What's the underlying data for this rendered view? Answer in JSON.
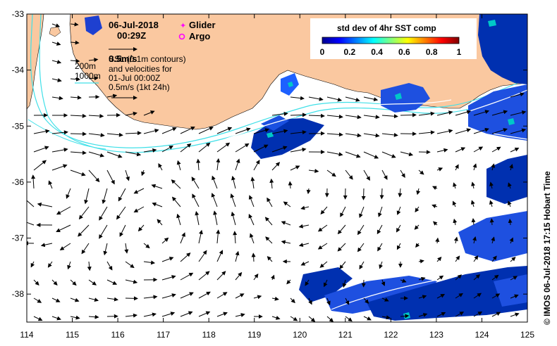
{
  "map": {
    "date": "06-Jul-2018",
    "time": "00:29Z",
    "legend": {
      "glider": "Glider",
      "argo": "Argo",
      "glider_color": "#ff00ff",
      "argo_color": "#ff00ff"
    },
    "notes": {
      "ssl_line1": "0.5m/s",
      "ssl_line2": "SSL (0.1m contours)",
      "ssl_line3": "and velocities for",
      "ssl_line4": "01-Jul 00:00Z",
      "ssl_line5": "0.5m/s (1kt 24h)",
      "isobath_200": "200m",
      "isobath_1000": "1000m"
    },
    "colorbar": {
      "title": "std dev of 4hr SST comp",
      "ticks": [
        "0",
        "0.2",
        "0.4",
        "0.6",
        "0.8",
        "1"
      ],
      "range": [
        0,
        1
      ]
    },
    "x_ticks": [
      "114",
      "115",
      "116",
      "117",
      "118",
      "119",
      "120",
      "121",
      "122",
      "123",
      "124",
      "125"
    ],
    "y_ticks": [
      "-33",
      "-34",
      "-35",
      "-36",
      "-37",
      "-38"
    ],
    "lon_range": [
      114,
      125
    ],
    "lat_range": [
      -38.5,
      -33
    ],
    "credit": "© IMOS 06-Jul-2018 17:15 Hobart Time",
    "colors": {
      "land": "#fac8a0",
      "isobath": "#40e0e8",
      "sst_low": "#00008b",
      "sst_mid": "#1e64ff",
      "sst_high": "#00c8c8"
    }
  }
}
